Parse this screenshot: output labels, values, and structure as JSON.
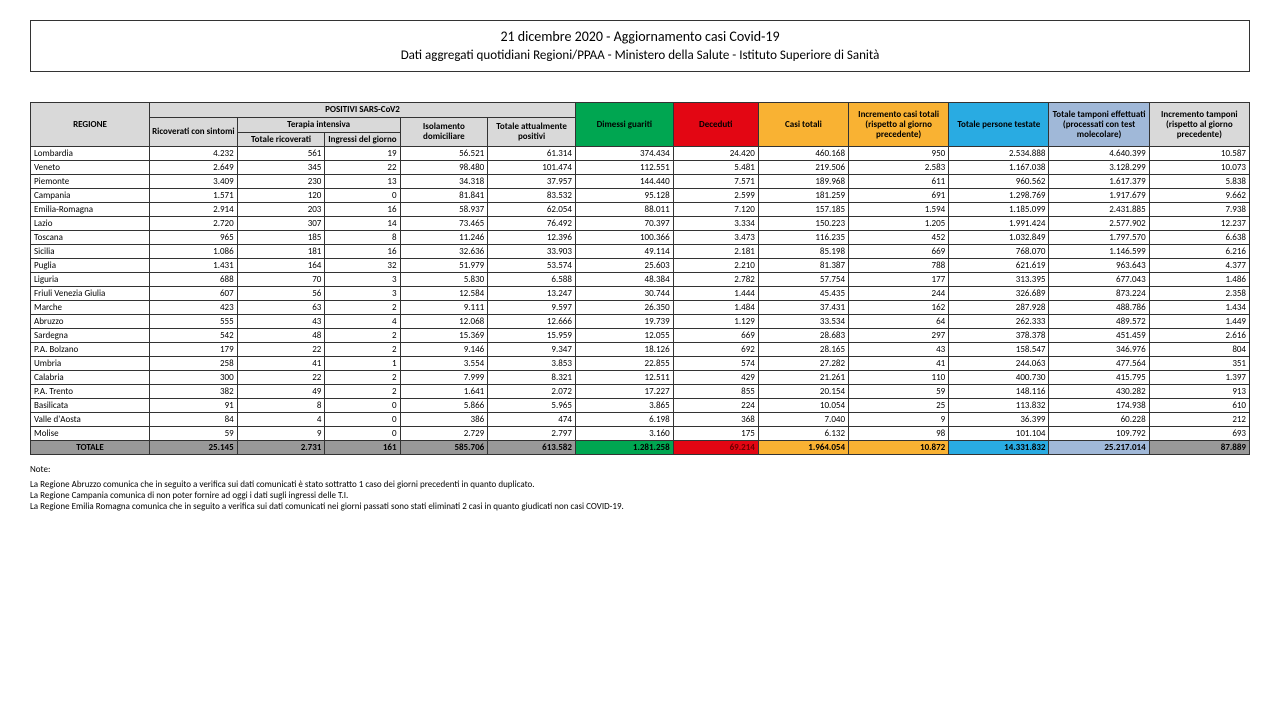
{
  "header": {
    "title": "21 dicembre 2020 - Aggiornamento casi Covid-19",
    "subtitle": "Dati aggregati quotidiani Regioni/PPAA - Ministero della Salute - Istituto Superiore di Sanità"
  },
  "columns": {
    "regione": "REGIONE",
    "positivi_group": "POSITIVI SARS-CoV2",
    "ricoverati": "Ricoverati con sintomi",
    "terapia_group": "Terapia intensiva",
    "terapia_tot": "Totale ricoverati",
    "terapia_ing": "Ingressi del giorno",
    "isolamento": "Isolamento domiciliare",
    "tot_pos": "Totale attualmente positivi",
    "dimessi": "Dimessi guariti",
    "deceduti": "Deceduti",
    "casi_tot": "Casi totali",
    "inc_casi": "Incremento casi totali (rispetto al giorno precedente)",
    "pers_test": "Totale persone testate",
    "tamponi": "Totale tamponi effettuati (processati con test molecolare)",
    "inc_tamp": "Incremento tamponi (rispetto al giorno precedente)"
  },
  "rows": [
    {
      "r": "Lombardia",
      "ric": "4.232",
      "tt": "561",
      "ti": "19",
      "iso": "56.521",
      "tp": "61.314",
      "dim": "374.434",
      "dec": "24.420",
      "ct": "460.168",
      "ic": "950",
      "pt": "2.534.888",
      "tm": "4.640.399",
      "it": "10.587"
    },
    {
      "r": "Veneto",
      "ric": "2.649",
      "tt": "345",
      "ti": "22",
      "iso": "98.480",
      "tp": "101.474",
      "dim": "112.551",
      "dec": "5.481",
      "ct": "219.506",
      "ic": "2.583",
      "pt": "1.167.038",
      "tm": "3.128.299",
      "it": "10.073"
    },
    {
      "r": "Piemonte",
      "ric": "3.409",
      "tt": "230",
      "ti": "13",
      "iso": "34.318",
      "tp": "37.957",
      "dim": "144.440",
      "dec": "7.571",
      "ct": "189.968",
      "ic": "611",
      "pt": "960.562",
      "tm": "1.617.379",
      "it": "5.838"
    },
    {
      "r": "Campania",
      "ric": "1.571",
      "tt": "120",
      "ti": "0",
      "iso": "81.841",
      "tp": "83.532",
      "dim": "95.128",
      "dec": "2.599",
      "ct": "181.259",
      "ic": "691",
      "pt": "1.298.769",
      "tm": "1.917.679",
      "it": "9.662"
    },
    {
      "r": "Emilia-Romagna",
      "ric": "2.914",
      "tt": "203",
      "ti": "16",
      "iso": "58.937",
      "tp": "62.054",
      "dim": "88.011",
      "dec": "7.120",
      "ct": "157.185",
      "ic": "1.594",
      "pt": "1.185.099",
      "tm": "2.431.885",
      "it": "7.938"
    },
    {
      "r": "Lazio",
      "ric": "2.720",
      "tt": "307",
      "ti": "14",
      "iso": "73.465",
      "tp": "76.492",
      "dim": "70.397",
      "dec": "3.334",
      "ct": "150.223",
      "ic": "1.205",
      "pt": "1.991.424",
      "tm": "2.577.902",
      "it": "12.237"
    },
    {
      "r": "Toscana",
      "ric": "965",
      "tt": "185",
      "ti": "8",
      "iso": "11.246",
      "tp": "12.396",
      "dim": "100.366",
      "dec": "3.473",
      "ct": "116.235",
      "ic": "452",
      "pt": "1.032.849",
      "tm": "1.797.570",
      "it": "6.638"
    },
    {
      "r": "Sicilia",
      "ric": "1.086",
      "tt": "181",
      "ti": "16",
      "iso": "32.636",
      "tp": "33.903",
      "dim": "49.114",
      "dec": "2.181",
      "ct": "85.198",
      "ic": "669",
      "pt": "768.070",
      "tm": "1.146.599",
      "it": "6.216"
    },
    {
      "r": "Puglia",
      "ric": "1.431",
      "tt": "164",
      "ti": "32",
      "iso": "51.979",
      "tp": "53.574",
      "dim": "25.603",
      "dec": "2.210",
      "ct": "81.387",
      "ic": "788",
      "pt": "621.619",
      "tm": "963.643",
      "it": "4.377"
    },
    {
      "r": "Liguria",
      "ric": "688",
      "tt": "70",
      "ti": "3",
      "iso": "5.830",
      "tp": "6.588",
      "dim": "48.384",
      "dec": "2.782",
      "ct": "57.754",
      "ic": "177",
      "pt": "313.395",
      "tm": "677.043",
      "it": "1.486"
    },
    {
      "r": "Friuli Venezia Giulia",
      "ric": "607",
      "tt": "56",
      "ti": "3",
      "iso": "12.584",
      "tp": "13.247",
      "dim": "30.744",
      "dec": "1.444",
      "ct": "45.435",
      "ic": "244",
      "pt": "326.689",
      "tm": "873.224",
      "it": "2.358"
    },
    {
      "r": "Marche",
      "ric": "423",
      "tt": "63",
      "ti": "2",
      "iso": "9.111",
      "tp": "9.597",
      "dim": "26.350",
      "dec": "1.484",
      "ct": "37.431",
      "ic": "162",
      "pt": "287.928",
      "tm": "488.786",
      "it": "1.434"
    },
    {
      "r": "Abruzzo",
      "ric": "555",
      "tt": "43",
      "ti": "4",
      "iso": "12.068",
      "tp": "12.666",
      "dim": "19.739",
      "dec": "1.129",
      "ct": "33.534",
      "ic": "64",
      "pt": "262.333",
      "tm": "489.572",
      "it": "1.449"
    },
    {
      "r": "Sardegna",
      "ric": "542",
      "tt": "48",
      "ti": "2",
      "iso": "15.369",
      "tp": "15.959",
      "dim": "12.055",
      "dec": "669",
      "ct": "28.683",
      "ic": "297",
      "pt": "378.378",
      "tm": "451.459",
      "it": "2.616"
    },
    {
      "r": "P.A. Bolzano",
      "ric": "179",
      "tt": "22",
      "ti": "2",
      "iso": "9.146",
      "tp": "9.347",
      "dim": "18.126",
      "dec": "692",
      "ct": "28.165",
      "ic": "43",
      "pt": "158.547",
      "tm": "346.976",
      "it": "804"
    },
    {
      "r": "Umbria",
      "ric": "258",
      "tt": "41",
      "ti": "1",
      "iso": "3.554",
      "tp": "3.853",
      "dim": "22.855",
      "dec": "574",
      "ct": "27.282",
      "ic": "41",
      "pt": "244.063",
      "tm": "477.564",
      "it": "351"
    },
    {
      "r": "Calabria",
      "ric": "300",
      "tt": "22",
      "ti": "2",
      "iso": "7.999",
      "tp": "8.321",
      "dim": "12.511",
      "dec": "429",
      "ct": "21.261",
      "ic": "110",
      "pt": "400.730",
      "tm": "415.795",
      "it": "1.397"
    },
    {
      "r": "P.A. Trento",
      "ric": "382",
      "tt": "49",
      "ti": "2",
      "iso": "1.641",
      "tp": "2.072",
      "dim": "17.227",
      "dec": "855",
      "ct": "20.154",
      "ic": "59",
      "pt": "148.116",
      "tm": "430.282",
      "it": "913"
    },
    {
      "r": "Basilicata",
      "ric": "91",
      "tt": "8",
      "ti": "0",
      "iso": "5.866",
      "tp": "5.965",
      "dim": "3.865",
      "dec": "224",
      "ct": "10.054",
      "ic": "25",
      "pt": "113.832",
      "tm": "174.938",
      "it": "610"
    },
    {
      "r": "Valle d'Aosta",
      "ric": "84",
      "tt": "4",
      "ti": "0",
      "iso": "386",
      "tp": "474",
      "dim": "6.198",
      "dec": "368",
      "ct": "7.040",
      "ic": "9",
      "pt": "36.399",
      "tm": "60.228",
      "it": "212"
    },
    {
      "r": "Molise",
      "ric": "59",
      "tt": "9",
      "ti": "0",
      "iso": "2.729",
      "tp": "2.797",
      "dim": "3.160",
      "dec": "175",
      "ct": "6.132",
      "ic": "98",
      "pt": "101.104",
      "tm": "109.792",
      "it": "693"
    }
  ],
  "total": {
    "r": "TOTALE",
    "ric": "25.145",
    "tt": "2.731",
    "ti": "161",
    "iso": "585.706",
    "tp": "613.582",
    "dim": "1.281.258",
    "dec": "69.214",
    "ct": "1.964.054",
    "ic": "10.872",
    "pt": "14.331.832",
    "tm": "25.217.014",
    "it": "87.889"
  },
  "notes": {
    "title": "Note:",
    "lines": [
      "La Regione Abruzzo comunica che in seguito a verifica sui dati comunicati è stato sottratto 1 caso dei giorni precedenti in quanto duplicato.",
      "La Regione Campania comunica di non poter fornire ad oggi i dati sugli ingressi delle T.I.",
      "La Regione Emilia Romagna comunica che in seguito a verifica sui dati comunicati nei giorni passati sono stati eliminati 2 casi in quanto giudicati non casi COVID-19."
    ]
  }
}
